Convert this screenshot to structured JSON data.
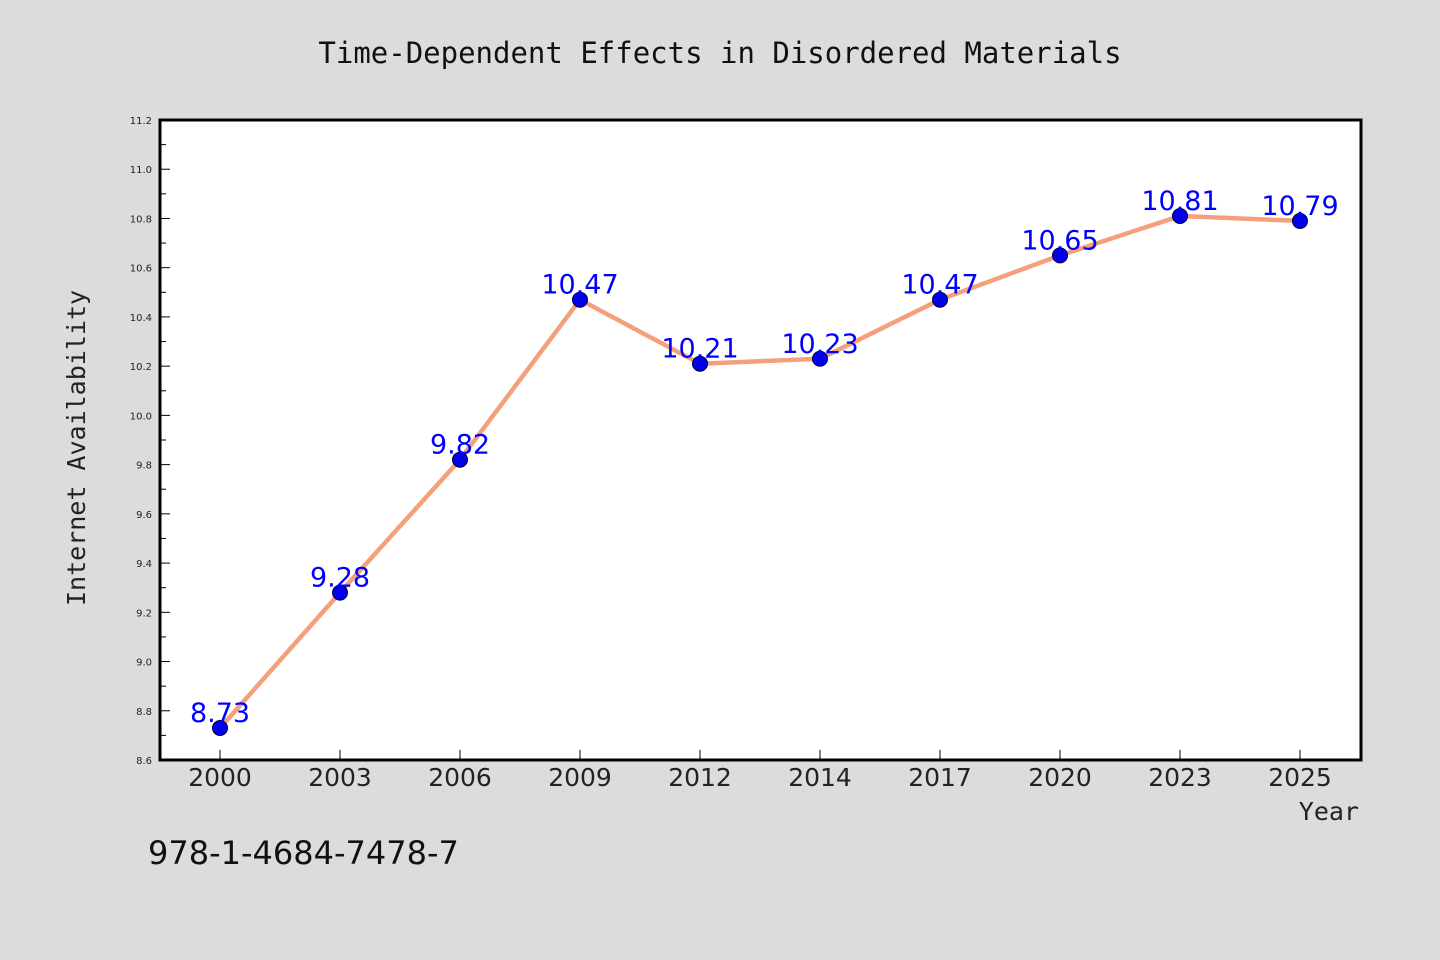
{
  "chart_data": {
    "type": "line",
    "title": "Time-Dependent Effects in Disordered Materials",
    "xlabel": "Year",
    "ylabel": "Internet Availability",
    "categories": [
      "2000",
      "2003",
      "2006",
      "2009",
      "2012",
      "2014",
      "2017",
      "2020",
      "2023",
      "2025"
    ],
    "series": [
      {
        "values": [
          8.73,
          9.28,
          9.82,
          10.47,
          10.21,
          10.23,
          10.47,
          10.65,
          10.81,
          10.79
        ],
        "labels": [
          "8.73",
          "9.28",
          "9.82",
          "10.47",
          "10.21",
          "10.23",
          "10.47",
          "10.65",
          "10.81",
          "10.79"
        ],
        "line_color": "#f4a07a",
        "marker_color": "#0000ee",
        "label_color": "#0000ff"
      }
    ],
    "ylim": [
      8.6,
      11.2
    ],
    "yticks": [
      "8.6",
      "8.8",
      "9.0",
      "9.2",
      "9.4",
      "9.6",
      "9.8",
      "10.0",
      "10.2",
      "10.4",
      "10.6",
      "10.8",
      "11.0",
      "11.2"
    ],
    "grid": false,
    "background": "#dcdcdc",
    "plot_background": "#ffffff"
  },
  "footer": {
    "isbn": "978-1-4684-7478-7"
  }
}
